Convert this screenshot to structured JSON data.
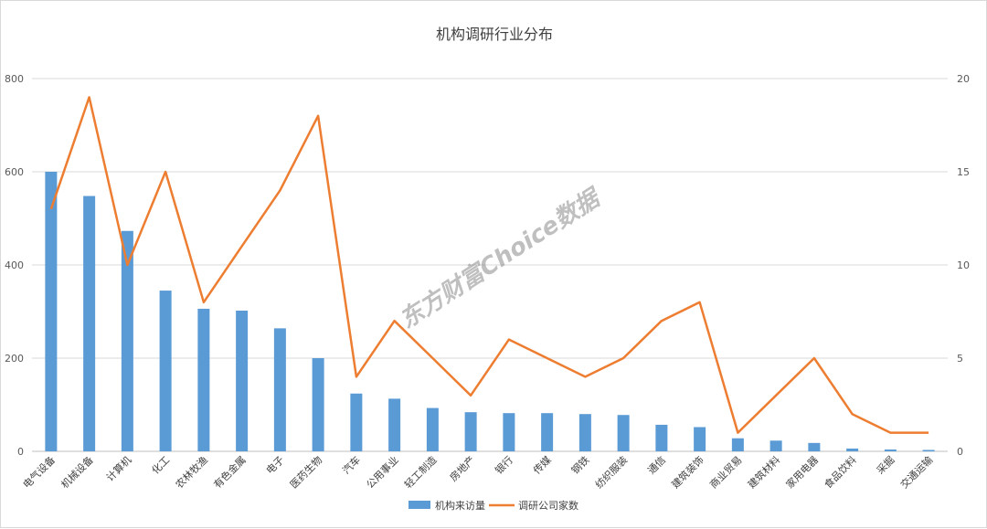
{
  "chart_data": {
    "type": "bar",
    "title": "机构调研行业分布",
    "categories": [
      "电气设备",
      "机械设备",
      "计算机",
      "化工",
      "农林牧渔",
      "有色金属",
      "电子",
      "医药生物",
      "汽车",
      "公用事业",
      "轻工制造",
      "房地产",
      "银行",
      "传媒",
      "钢铁",
      "纺织服装",
      "通信",
      "建筑装饰",
      "商业贸易",
      "建筑材料",
      "家用电器",
      "食品饮料",
      "采掘",
      "交通运输"
    ],
    "series": [
      {
        "name": "机构来访量",
        "axis": "left",
        "type": "bar",
        "color": "#5b9bd5",
        "values": [
          600,
          548,
          473,
          345,
          306,
          302,
          264,
          200,
          124,
          113,
          93,
          84,
          82,
          82,
          80,
          78,
          57,
          52,
          28,
          23,
          18,
          6,
          4,
          3
        ]
      },
      {
        "name": "调研公司家数",
        "axis": "right",
        "type": "line",
        "color": "#ed7d31",
        "values": [
          13,
          19,
          10,
          15,
          8,
          11,
          14,
          18,
          4,
          7,
          5,
          3,
          6,
          5,
          4,
          5,
          7,
          8,
          1,
          3,
          5,
          2,
          1,
          1
        ]
      }
    ],
    "y_left": {
      "min": 0,
      "max": 800,
      "ticks": [
        "0",
        "200",
        "400",
        "600",
        "800"
      ]
    },
    "y_right": {
      "min": 0,
      "max": 20,
      "ticks": [
        "0",
        "5",
        "10",
        "15",
        "20"
      ]
    },
    "grid": true,
    "legend_position": "bottom",
    "watermark": "东方财富Choice数据"
  }
}
